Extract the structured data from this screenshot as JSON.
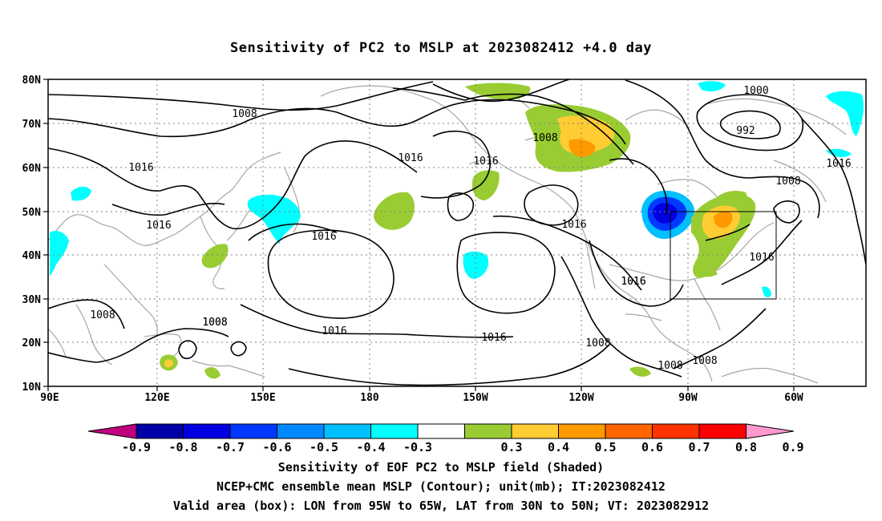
{
  "title": "Sensitivity of PC2 to MSLP at 2023082412 +4.0 day",
  "axes": {
    "lat_labels": [
      "80N",
      "70N",
      "60N",
      "50N",
      "40N",
      "30N",
      "20N",
      "10N"
    ],
    "lon_labels": [
      "90E",
      "120E",
      "150E",
      "180",
      "150W",
      "120W",
      "90W",
      "60W"
    ]
  },
  "contour_labels": [
    "1008",
    "1016",
    "1016",
    "1016",
    "1016",
    "1008",
    "1008",
    "1016",
    "1016",
    "1016",
    "1016",
    "1016",
    "1016",
    "1000",
    "992",
    "1008",
    "1008",
    "1016",
    "1016",
    "1008",
    "1008",
    "1008",
    "1008"
  ],
  "valid_box": {
    "lon_range": [
      "95W",
      "65W"
    ],
    "lat_range": [
      "30N",
      "50N"
    ]
  },
  "colorbar": {
    "labels": [
      "-0.9",
      "-0.8",
      "-0.7",
      "-0.6",
      "-0.5",
      "-0.4",
      "-0.3",
      "0.3",
      "0.4",
      "0.5",
      "0.6",
      "0.7",
      "0.8",
      "0.9"
    ],
    "colors": [
      "#c0007f",
      "#0000a8",
      "#0000e0",
      "#0038ff",
      "#0088ff",
      "#00c0ff",
      "#00ffff",
      "#ffffff",
      "#99cc33",
      "#ffcc33",
      "#ff9900",
      "#ff6600",
      "#ff3300",
      "#ff0000",
      "#ff99cc"
    ]
  },
  "captions": {
    "line1": "Sensitivity of EOF PC2 to MSLP field (Shaded)",
    "line2": "NCEP+CMC ensemble mean MSLP (Contour); unit(mb); IT:2023082412",
    "line3": "Valid area (box): LON from 95W to 65W, LAT from 30N to 50N; VT: 2023082912"
  }
}
